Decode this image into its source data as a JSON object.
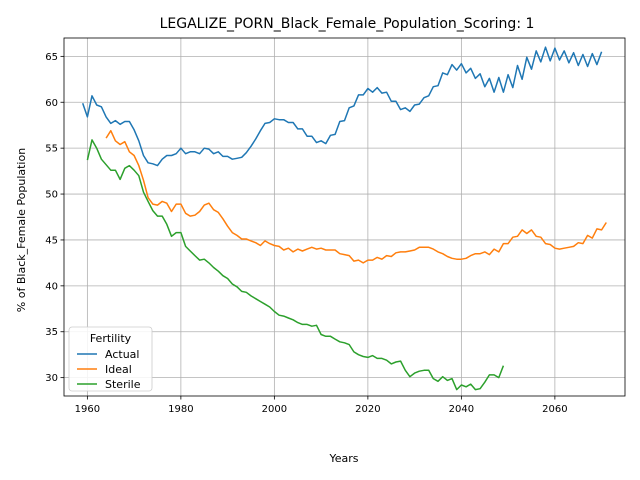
{
  "chart_data": {
    "type": "line",
    "title": "LEGALIZE_PORN_Black_Female_Population_Scoring: 1",
    "xlabel": "Years",
    "ylabel": "% of Black_Female Population",
    "xlim": [
      1955,
      2075
    ],
    "ylim": [
      28.0,
      67.0
    ],
    "xticks": [
      1960,
      1980,
      2000,
      2020,
      2040,
      2060
    ],
    "yticks": [
      30,
      35,
      40,
      45,
      50,
      55,
      60,
      65
    ],
    "grid": true,
    "legend": {
      "title": "Fertility",
      "placement": "lower-left"
    },
    "series": [
      {
        "name": "Actual",
        "color": "#1f77b4",
        "points": [
          [
            1959,
            59.9
          ],
          [
            1960,
            58.4
          ],
          [
            1961,
            60.7
          ],
          [
            1962,
            59.7
          ],
          [
            1963,
            59.5
          ],
          [
            1964,
            58.4
          ],
          [
            1965,
            57.7
          ],
          [
            1966,
            58.0
          ],
          [
            1967,
            57.6
          ],
          [
            1968,
            57.9
          ],
          [
            1969,
            57.9
          ],
          [
            1970,
            57.0
          ],
          [
            1971,
            55.8
          ],
          [
            1972,
            54.2
          ],
          [
            1973,
            53.4
          ],
          [
            1974,
            53.3
          ],
          [
            1975,
            53.1
          ],
          [
            1976,
            53.8
          ],
          [
            1977,
            54.2
          ],
          [
            1978,
            54.2
          ],
          [
            1979,
            54.4
          ],
          [
            1980,
            55.0
          ],
          [
            1981,
            54.4
          ],
          [
            1982,
            54.6
          ],
          [
            1983,
            54.6
          ],
          [
            1984,
            54.4
          ],
          [
            1985,
            55.0
          ],
          [
            1986,
            54.9
          ],
          [
            1987,
            54.4
          ],
          [
            1988,
            54.6
          ],
          [
            1989,
            54.1
          ],
          [
            1990,
            54.1
          ],
          [
            1991,
            53.8
          ],
          [
            1992,
            53.9
          ],
          [
            1993,
            54.0
          ],
          [
            1994,
            54.5
          ],
          [
            1995,
            55.2
          ],
          [
            1996,
            56.0
          ],
          [
            1997,
            56.9
          ],
          [
            1998,
            57.7
          ],
          [
            1999,
            57.8
          ],
          [
            2000,
            58.2
          ],
          [
            2001,
            58.1
          ],
          [
            2002,
            58.1
          ],
          [
            2003,
            57.8
          ],
          [
            2004,
            57.8
          ],
          [
            2005,
            57.1
          ],
          [
            2006,
            57.1
          ],
          [
            2007,
            56.3
          ],
          [
            2008,
            56.3
          ],
          [
            2009,
            55.6
          ],
          [
            2010,
            55.8
          ],
          [
            2011,
            55.5
          ],
          [
            2012,
            56.4
          ],
          [
            2013,
            56.5
          ],
          [
            2014,
            57.9
          ],
          [
            2015,
            58.0
          ],
          [
            2016,
            59.4
          ],
          [
            2017,
            59.6
          ],
          [
            2018,
            60.8
          ],
          [
            2019,
            60.8
          ],
          [
            2020,
            61.5
          ],
          [
            2021,
            61.1
          ],
          [
            2022,
            61.6
          ],
          [
            2023,
            61.0
          ],
          [
            2024,
            61.1
          ],
          [
            2025,
            60.1
          ],
          [
            2026,
            60.1
          ],
          [
            2027,
            59.2
          ],
          [
            2028,
            59.4
          ],
          [
            2029,
            59.0
          ],
          [
            2030,
            59.7
          ],
          [
            2031,
            59.8
          ],
          [
            2032,
            60.5
          ],
          [
            2033,
            60.7
          ],
          [
            2034,
            61.7
          ],
          [
            2035,
            61.8
          ],
          [
            2036,
            63.2
          ],
          [
            2037,
            63.0
          ],
          [
            2038,
            64.1
          ],
          [
            2039,
            63.5
          ],
          [
            2040,
            64.2
          ],
          [
            2041,
            63.2
          ],
          [
            2042,
            63.7
          ],
          [
            2043,
            62.6
          ],
          [
            2044,
            63.1
          ],
          [
            2045,
            61.7
          ],
          [
            2046,
            62.6
          ],
          [
            2047,
            61.1
          ],
          [
            2048,
            62.7
          ],
          [
            2049,
            61.1
          ],
          [
            2050,
            63.0
          ],
          [
            2051,
            61.6
          ],
          [
            2052,
            64.0
          ],
          [
            2053,
            62.5
          ],
          [
            2054,
            64.9
          ],
          [
            2055,
            63.6
          ],
          [
            2056,
            65.6
          ],
          [
            2057,
            64.4
          ],
          [
            2058,
            66.0
          ],
          [
            2059,
            64.5
          ],
          [
            2060,
            65.9
          ],
          [
            2061,
            64.6
          ],
          [
            2062,
            65.6
          ],
          [
            2063,
            64.3
          ],
          [
            2064,
            65.4
          ],
          [
            2065,
            64.0
          ],
          [
            2066,
            65.2
          ],
          [
            2067,
            63.9
          ],
          [
            2068,
            65.3
          ],
          [
            2069,
            64.1
          ],
          [
            2070,
            65.5
          ]
        ]
      },
      {
        "name": "Ideal",
        "color": "#ff7f0e",
        "points": [
          [
            1964,
            56.1
          ],
          [
            1965,
            56.9
          ],
          [
            1966,
            55.8
          ],
          [
            1967,
            55.4
          ],
          [
            1968,
            55.7
          ],
          [
            1969,
            54.6
          ],
          [
            1970,
            54.2
          ],
          [
            1971,
            53.1
          ],
          [
            1972,
            51.5
          ],
          [
            1973,
            49.6
          ],
          [
            1974,
            48.9
          ],
          [
            1975,
            48.8
          ],
          [
            1976,
            49.2
          ],
          [
            1977,
            49.0
          ],
          [
            1978,
            48.1
          ],
          [
            1979,
            48.9
          ],
          [
            1980,
            48.9
          ],
          [
            1981,
            47.9
          ],
          [
            1982,
            47.6
          ],
          [
            1983,
            47.7
          ],
          [
            1984,
            48.1
          ],
          [
            1985,
            48.8
          ],
          [
            1986,
            49.0
          ],
          [
            1987,
            48.3
          ],
          [
            1988,
            48.0
          ],
          [
            1989,
            47.3
          ],
          [
            1990,
            46.5
          ],
          [
            1991,
            45.8
          ],
          [
            1992,
            45.5
          ],
          [
            1993,
            45.1
          ],
          [
            1994,
            45.1
          ],
          [
            1995,
            44.9
          ],
          [
            1996,
            44.7
          ],
          [
            1997,
            44.4
          ],
          [
            1998,
            44.9
          ],
          [
            1999,
            44.6
          ],
          [
            2000,
            44.4
          ],
          [
            2001,
            44.3
          ],
          [
            2002,
            43.9
          ],
          [
            2003,
            44.1
          ],
          [
            2004,
            43.7
          ],
          [
            2005,
            44.0
          ],
          [
            2006,
            43.8
          ],
          [
            2007,
            44.0
          ],
          [
            2008,
            44.2
          ],
          [
            2009,
            44.0
          ],
          [
            2010,
            44.1
          ],
          [
            2011,
            43.9
          ],
          [
            2012,
            43.9
          ],
          [
            2013,
            43.9
          ],
          [
            2014,
            43.5
          ],
          [
            2015,
            43.4
          ],
          [
            2016,
            43.3
          ],
          [
            2017,
            42.7
          ],
          [
            2018,
            42.8
          ],
          [
            2019,
            42.5
          ],
          [
            2020,
            42.8
          ],
          [
            2021,
            42.8
          ],
          [
            2022,
            43.1
          ],
          [
            2023,
            42.9
          ],
          [
            2024,
            43.3
          ],
          [
            2025,
            43.2
          ],
          [
            2026,
            43.6
          ],
          [
            2027,
            43.7
          ],
          [
            2028,
            43.7
          ],
          [
            2029,
            43.8
          ],
          [
            2030,
            43.9
          ],
          [
            2031,
            44.2
          ],
          [
            2032,
            44.2
          ],
          [
            2033,
            44.2
          ],
          [
            2034,
            44.0
          ],
          [
            2035,
            43.7
          ],
          [
            2036,
            43.5
          ],
          [
            2037,
            43.2
          ],
          [
            2038,
            43.0
          ],
          [
            2039,
            42.9
          ],
          [
            2040,
            42.9
          ],
          [
            2041,
            43.0
          ],
          [
            2042,
            43.3
          ],
          [
            2043,
            43.5
          ],
          [
            2044,
            43.5
          ],
          [
            2045,
            43.7
          ],
          [
            2046,
            43.4
          ],
          [
            2047,
            44.0
          ],
          [
            2048,
            43.7
          ],
          [
            2049,
            44.6
          ],
          [
            2050,
            44.6
          ],
          [
            2051,
            45.3
          ],
          [
            2052,
            45.4
          ],
          [
            2053,
            46.1
          ],
          [
            2054,
            45.7
          ],
          [
            2055,
            46.1
          ],
          [
            2056,
            45.4
          ],
          [
            2057,
            45.3
          ],
          [
            2058,
            44.6
          ],
          [
            2059,
            44.5
          ],
          [
            2060,
            44.1
          ],
          [
            2061,
            44.0
          ],
          [
            2062,
            44.1
          ],
          [
            2063,
            44.2
          ],
          [
            2064,
            44.3
          ],
          [
            2065,
            44.7
          ],
          [
            2066,
            44.6
          ],
          [
            2067,
            45.5
          ],
          [
            2068,
            45.2
          ],
          [
            2069,
            46.2
          ],
          [
            2070,
            46.1
          ],
          [
            2071,
            46.9
          ]
        ]
      },
      {
        "name": "Sterile",
        "color": "#2ca02c",
        "points": [
          [
            1960,
            53.7
          ],
          [
            1961,
            55.9
          ],
          [
            1962,
            55.0
          ],
          [
            1963,
            53.8
          ],
          [
            1964,
            53.2
          ],
          [
            1965,
            52.6
          ],
          [
            1966,
            52.6
          ],
          [
            1967,
            51.6
          ],
          [
            1968,
            52.8
          ],
          [
            1969,
            53.1
          ],
          [
            1970,
            52.6
          ],
          [
            1971,
            52.0
          ],
          [
            1972,
            50.2
          ],
          [
            1973,
            49.2
          ],
          [
            1974,
            48.2
          ],
          [
            1975,
            47.6
          ],
          [
            1976,
            47.6
          ],
          [
            1977,
            46.7
          ],
          [
            1978,
            45.4
          ],
          [
            1979,
            45.8
          ],
          [
            1980,
            45.8
          ],
          [
            1981,
            44.3
          ],
          [
            1982,
            43.8
          ],
          [
            1983,
            43.3
          ],
          [
            1984,
            42.8
          ],
          [
            1985,
            42.9
          ],
          [
            1986,
            42.5
          ],
          [
            1987,
            42.0
          ],
          [
            1988,
            41.6
          ],
          [
            1989,
            41.1
          ],
          [
            1990,
            40.8
          ],
          [
            1991,
            40.2
          ],
          [
            1992,
            39.9
          ],
          [
            1993,
            39.4
          ],
          [
            1994,
            39.3
          ],
          [
            1995,
            38.9
          ],
          [
            1996,
            38.6
          ],
          [
            1997,
            38.3
          ],
          [
            1998,
            38.0
          ],
          [
            1999,
            37.7
          ],
          [
            2000,
            37.2
          ],
          [
            2001,
            36.8
          ],
          [
            2002,
            36.7
          ],
          [
            2003,
            36.5
          ],
          [
            2004,
            36.3
          ],
          [
            2005,
            36.0
          ],
          [
            2006,
            35.8
          ],
          [
            2007,
            35.8
          ],
          [
            2008,
            35.6
          ],
          [
            2009,
            35.7
          ],
          [
            2010,
            34.7
          ],
          [
            2011,
            34.5
          ],
          [
            2012,
            34.5
          ],
          [
            2013,
            34.2
          ],
          [
            2014,
            33.9
          ],
          [
            2015,
            33.8
          ],
          [
            2016,
            33.6
          ],
          [
            2017,
            32.8
          ],
          [
            2018,
            32.5
          ],
          [
            2019,
            32.3
          ],
          [
            2020,
            32.2
          ],
          [
            2021,
            32.4
          ],
          [
            2022,
            32.1
          ],
          [
            2023,
            32.1
          ],
          [
            2024,
            31.9
          ],
          [
            2025,
            31.5
          ],
          [
            2026,
            31.7
          ],
          [
            2027,
            31.8
          ],
          [
            2028,
            30.8
          ],
          [
            2029,
            30.1
          ],
          [
            2030,
            30.5
          ],
          [
            2031,
            30.7
          ],
          [
            2032,
            30.8
          ],
          [
            2033,
            30.8
          ],
          [
            2034,
            29.9
          ],
          [
            2035,
            29.6
          ],
          [
            2036,
            30.1
          ],
          [
            2037,
            29.7
          ],
          [
            2038,
            29.9
          ],
          [
            2039,
            28.7
          ],
          [
            2040,
            29.2
          ],
          [
            2041,
            29.0
          ],
          [
            2042,
            29.3
          ],
          [
            2043,
            28.7
          ],
          [
            2044,
            28.8
          ],
          [
            2045,
            29.5
          ],
          [
            2046,
            30.3
          ],
          [
            2047,
            30.3
          ],
          [
            2048,
            30.0
          ],
          [
            2049,
            31.3
          ]
        ]
      }
    ]
  }
}
